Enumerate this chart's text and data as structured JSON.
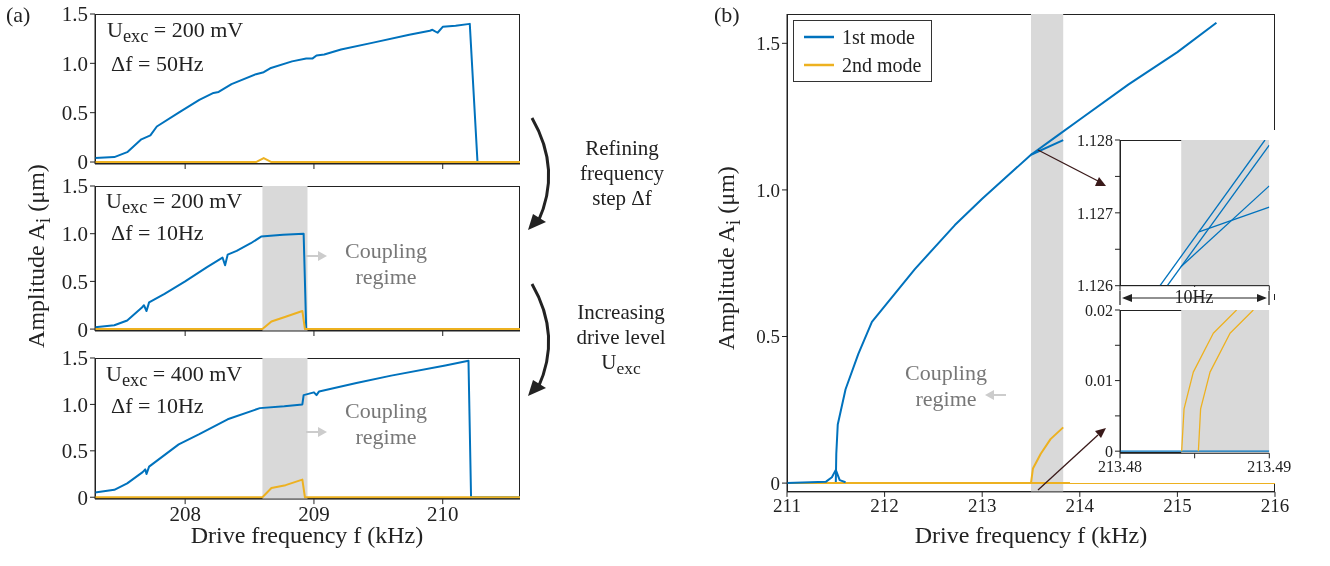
{
  "chart_data": [
    {
      "type": "line",
      "annotations": [
        "(a)",
        "U$_{exc}$ = 200 mV",
        "Δf = 50Hz",
        "Refining frequency step Δf"
      ],
      "xlim": [
        207.3,
        210.6
      ],
      "xticks": [
        208,
        209,
        210
      ],
      "ylim": [
        -0.02,
        1.5
      ],
      "yticks": [
        0,
        0.5,
        {
          "value": 1,
          "label": "1.0"
        },
        1.5
      ],
      "tick_labels": "y",
      "series": [
        {
          "color": "#0072bd",
          "x": [
            207.3,
            207.45,
            207.55,
            207.66,
            207.73,
            207.78,
            207.95,
            208.11,
            208.22,
            208.26,
            208.36,
            208.55,
            208.61,
            208.66,
            208.83,
            208.94,
            208.99,
            209.02,
            209.08,
            209.21,
            209.46,
            209.74,
            209.9,
            209.92,
            209.96,
            210.0,
            210.1,
            210.21,
            210.27,
            210.6
          ],
          "values": [
            0.04,
            0.05,
            0.1,
            0.23,
            0.27,
            0.36,
            0.5,
            0.63,
            0.7,
            0.71,
            0.79,
            0.89,
            0.91,
            0.95,
            1.02,
            1.05,
            1.05,
            1.08,
            1.09,
            1.14,
            1.21,
            1.29,
            1.33,
            1.34,
            1.31,
            1.37,
            1.38,
            1.4,
            0,
            0
          ]
        },
        {
          "color": "#edb120",
          "x": [
            207.3,
            208.55,
            208.61,
            208.67,
            210.6
          ],
          "values": [
            0,
            0,
            0.04,
            0,
            0
          ]
        }
      ]
    },
    {
      "type": "line",
      "ylabel": "Amplitude A$_{i}$ (μm)",
      "annotations": [
        "U$_{exc}$ = 200 mV",
        "Δf = 10Hz",
        "Coupling regime",
        "Increasing drive level U$_{exc}$"
      ],
      "xlim": [
        207.3,
        210.6
      ],
      "xticks": [
        208,
        209,
        210
      ],
      "ylim": [
        -0.02,
        1.5
      ],
      "yticks": [
        0,
        0.5,
        {
          "value": 1,
          "label": "1.0"
        },
        1.5
      ],
      "tick_labels": "y",
      "bands": [
        {
          "axis": "x",
          "from": 208.6,
          "to": 208.95,
          "color": "#d9d9d9"
        }
      ],
      "series": [
        {
          "color": "#0072bd",
          "x": [
            207.3,
            207.45,
            207.55,
            207.66,
            207.68,
            207.7,
            207.72,
            207.84,
            208.0,
            208.17,
            208.29,
            208.31,
            208.33,
            208.4,
            208.51,
            208.59,
            208.76,
            208.92,
            208.94,
            210.6
          ],
          "values": [
            0.02,
            0.04,
            0.09,
            0.22,
            0.25,
            0.19,
            0.28,
            0.37,
            0.5,
            0.65,
            0.75,
            0.67,
            0.78,
            0.82,
            0.9,
            0.97,
            0.99,
            1.0,
            0,
            0
          ]
        },
        {
          "color": "#edb120",
          "x": [
            207.3,
            208.6,
            208.67,
            208.78,
            208.91,
            208.93,
            210.6
          ],
          "values": [
            0,
            0,
            0.08,
            0.13,
            0.19,
            0,
            0
          ]
        }
      ]
    },
    {
      "type": "line",
      "xlabel": "Drive frequency f (kHz)",
      "annotations": [
        "U$_{exc}$ = 400 mV",
        "Δf = 10Hz",
        "Coupling regime"
      ],
      "xlim": [
        207.3,
        210.6
      ],
      "xticks": [
        208,
        209,
        210
      ],
      "ylim": [
        -0.02,
        1.5
      ],
      "yticks": [
        0,
        0.5,
        {
          "value": 1,
          "label": "1.0"
        },
        1.5
      ],
      "bands": [
        {
          "axis": "x",
          "from": 208.6,
          "to": 208.95,
          "color": "#d9d9d9"
        }
      ],
      "series": [
        {
          "color": "#0072bd",
          "x": [
            207.3,
            207.45,
            207.55,
            207.67,
            207.69,
            207.7,
            207.72,
            207.95,
            208.11,
            208.33,
            208.58,
            208.77,
            208.91,
            208.92,
            209.0,
            209.02,
            209.04,
            209.33,
            209.6,
            210.02,
            210.2,
            210.22,
            210.6
          ],
          "values": [
            0.05,
            0.08,
            0.15,
            0.27,
            0.3,
            0.25,
            0.33,
            0.57,
            0.68,
            0.84,
            0.96,
            0.98,
            1.0,
            1.1,
            1.13,
            1.1,
            1.14,
            1.23,
            1.31,
            1.42,
            1.47,
            0,
            0
          ]
        },
        {
          "color": "#edb120",
          "x": [
            207.3,
            208.6,
            208.67,
            208.78,
            208.91,
            208.93,
            210.6
          ],
          "values": [
            0,
            0,
            0.1,
            0.13,
            0.19,
            0,
            0
          ]
        }
      ]
    },
    {
      "type": "line",
      "xlabel": "Drive frequency f (kHz)",
      "ylabel": "Amplitude A$_{i}$ (μm)",
      "annotations": [
        "(b)",
        "Coupling regime"
      ],
      "legend": "top left",
      "xlim": [
        211,
        216
      ],
      "xticks": [
        211,
        212,
        213,
        214,
        215,
        216
      ],
      "ylim": [
        -0.03,
        1.6
      ],
      "yticks": [
        0,
        0.5,
        {
          "value": 1,
          "label": "1.0"
        },
        1.5
      ],
      "bands": [
        {
          "axis": "x",
          "from": 213.5,
          "to": 213.83,
          "color": "#d9d9d9"
        }
      ],
      "series": [
        {
          "name": "1st mode",
          "color": "#0072bd",
          "x": [
            211.5,
            211.505,
            211.52,
            211.6,
            211.73,
            211.87,
            212.31,
            212.72,
            213.0,
            213.5,
            213.75,
            214.0,
            214.5,
            215.0,
            215.4
          ],
          "values": [
            0,
            0.1,
            0.2,
            0.32,
            0.44,
            0.55,
            0.73,
            0.88,
            0.97,
            1.12,
            1.18,
            1.24,
            1.36,
            1.47,
            1.57
          ]
        },
        {
          "color": "#0072bd",
          "x": [
            213.5,
            213.83
          ],
          "values": [
            1.12,
            1.17
          ]
        },
        {
          "name": "2nd mode",
          "color": "#edb120",
          "x": [
            211,
            216
          ],
          "values": [
            0,
            0
          ]
        },
        {
          "color": "#edb120",
          "x": [
            213.5,
            213.52,
            213.6,
            213.7,
            213.83
          ],
          "values": [
            0,
            0.05,
            0.1,
            0.15,
            0.19
          ]
        },
        {
          "color": "#0072bd",
          "x": [
            211,
            211.4,
            211.46,
            211.5,
            211.54,
            211.6
          ],
          "values": [
            0,
            0.005,
            0.02,
            0.045,
            0.01,
            0.003
          ]
        }
      ]
    },
    {
      "type": "line",
      "annotations": [
        "10Hz"
      ],
      "xlim": [
        213.48,
        213.49
      ],
      "xticks": [
        213.48,
        {
          "value": 213.485,
          "label": null
        },
        213.49
      ],
      "ylim": [
        1.126,
        1.128
      ],
      "yticks": [
        1.126,
        {
          "value": 1.1265,
          "label": null
        },
        1.127,
        {
          "value": 1.1275,
          "label": null
        },
        1.128
      ],
      "tick_labels": "y",
      "bands": [
        {
          "axis": "x",
          "from": 213.4841,
          "to": 213.49,
          "color": "#d9d9d9"
        }
      ],
      "series": [
        {
          "color": "#0072bd",
          "x": [
            213.48268,
            213.48971
          ],
          "values": [
            1.126,
            1.128
          ]
        },
        {
          "color": "#0072bd",
          "x": [
            213.48317,
            213.49
          ],
          "values": [
            1.126,
            1.12793
          ]
        },
        {
          "color": "#0072bd",
          "x": [
            213.48408,
            213.49
          ],
          "values": [
            1.12626,
            1.12737
          ]
        },
        {
          "color": "#0072bd",
          "x": [
            213.48529,
            213.49
          ],
          "values": [
            1.12674,
            1.12708
          ]
        }
      ]
    },
    {
      "type": "line",
      "xlim": [
        213.48,
        213.49
      ],
      "xticks": [
        213.48,
        {
          "value": 213.485,
          "label": null
        },
        213.49
      ],
      "ylim": [
        -0.0003,
        0.02
      ],
      "yticks": [
        0,
        {
          "value": 0.005,
          "label": null
        },
        0.01,
        {
          "value": 0.015,
          "label": null
        },
        0.02
      ],
      "bands": [
        {
          "axis": "x",
          "from": 213.4841,
          "to": 213.49,
          "color": "#d9d9d9"
        }
      ],
      "series": [
        {
          "color": "#0072bd",
          "x": [
            213.48,
            213.49
          ],
          "values": [
            0,
            0
          ]
        },
        {
          "color": "#edb120",
          "x": [
            213.48413,
            213.48429,
            213.48491,
            213.48625,
            213.48781
          ],
          "values": [
            0,
            0.006,
            0.0112,
            0.0167,
            0.02
          ]
        },
        {
          "color": "#edb120",
          "x": [
            213.48525,
            213.4854,
            213.48603,
            213.48737,
            213.48893
          ],
          "values": [
            0,
            0.006,
            0.0112,
            0.0167,
            0.02
          ]
        }
      ]
    }
  ]
}
